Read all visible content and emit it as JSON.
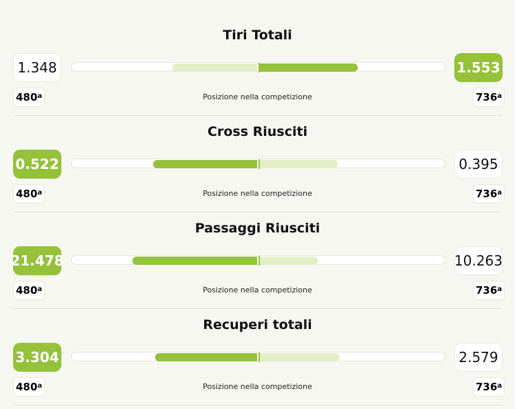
{
  "colors": {
    "accent": "#95c13b",
    "light": "#e3efc6",
    "panel": "#f5f7f0"
  },
  "stats": [
    {
      "title": "Tiri Totali",
      "left": "1.348",
      "right": "1.553",
      "winner": "right",
      "left_fill": 0.455,
      "right_fill": 0.526,
      "left_rank": "480",
      "right_rank": "736",
      "rank_suffix": "a",
      "position_label": "Posizione nella competizione"
    },
    {
      "title": "Cross Riusciti",
      "left": "0.522",
      "right": "0.395",
      "winner": "left",
      "left_fill": 0.56,
      "right_fill": 0.42,
      "left_rank": "480",
      "right_rank": "736",
      "rank_suffix": "a",
      "position_label": "Posizione nella competizione"
    },
    {
      "title": "Passaggi Riusciti",
      "left": "21.478",
      "right": "10.263",
      "winner": "left",
      "left_fill": 0.67,
      "right_fill": 0.31,
      "left_rank": "480",
      "right_rank": "736",
      "rank_suffix": "a",
      "position_label": "Posizione nella competizione"
    },
    {
      "title": "Recuperi totali",
      "left": "3.304",
      "right": "2.579",
      "winner": "left",
      "left_fill": 0.55,
      "right_fill": 0.43,
      "left_rank": "480",
      "right_rank": "736",
      "rank_suffix": "a",
      "position_label": "Posizione nella competizione"
    }
  ]
}
